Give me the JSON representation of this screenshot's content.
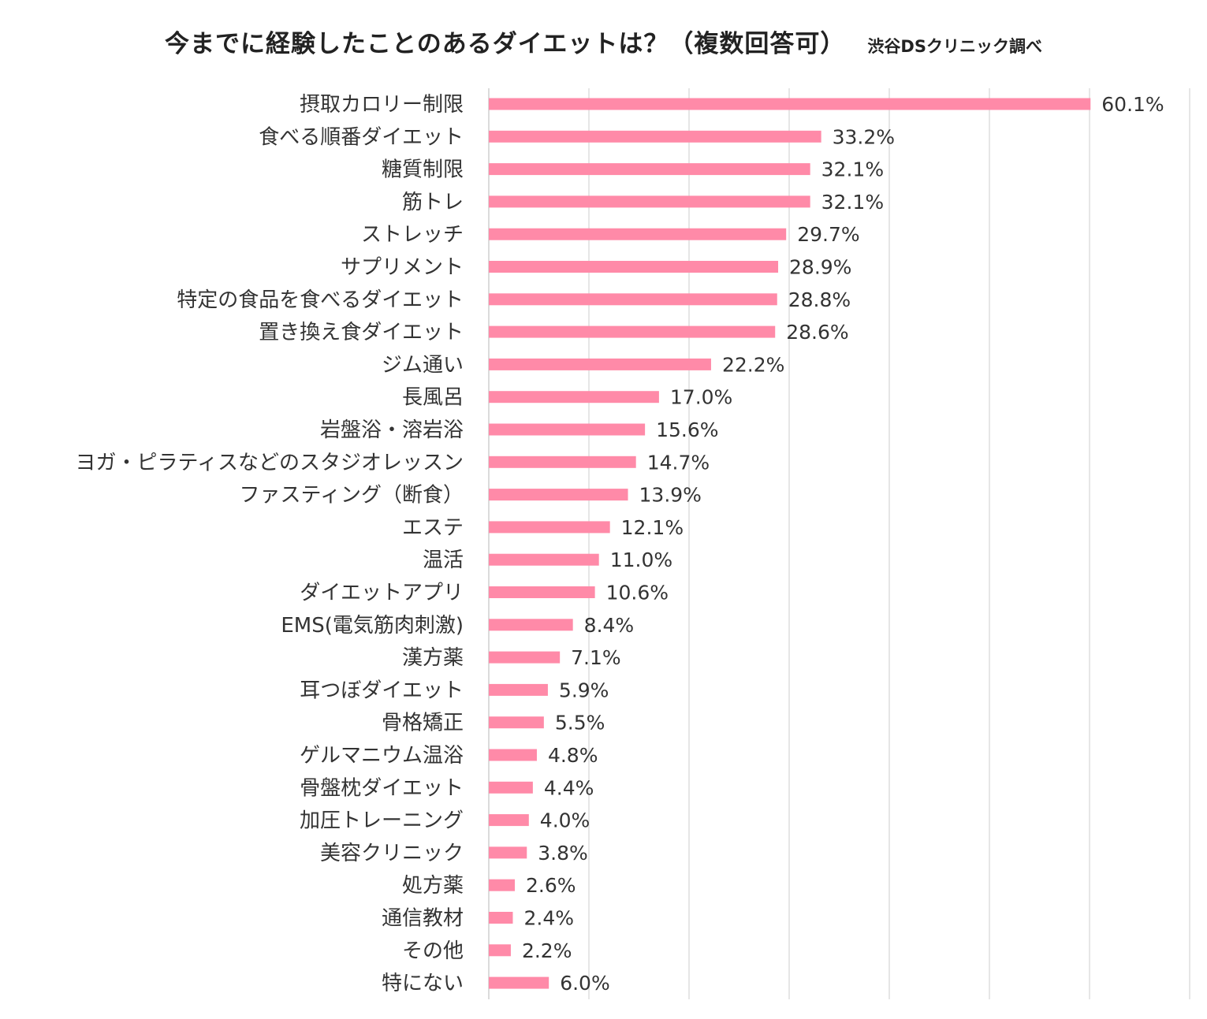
{
  "title": "今までに経験したことのあるダイエットは？（複数回答可）",
  "source": "渋谷DSクリニック調べ",
  "chart_data": {
    "type": "bar",
    "orientation": "horizontal",
    "bar_color": "#ff8aa8",
    "grid": "vertical",
    "xlim": [
      0,
      70
    ],
    "categories": [
      "摂取カロリー制限",
      "食べる順番ダイエット",
      "糖質制限",
      "筋トレ",
      "ストレッチ",
      "サプリメント",
      "特定の食品を食べるダイエット",
      "置き換え食ダイエット",
      "ジム通い",
      "長風呂",
      "岩盤浴・溶岩浴",
      "ヨガ・ピラティスなどのスタジオレッスン",
      "ファスティング（断食）",
      "エステ",
      "温活",
      "ダイエットアプリ",
      "EMS(電気筋肉刺激)",
      "漢方薬",
      "耳つぼダイエット",
      "骨格矯正",
      "ゲルマニウム温浴",
      "骨盤枕ダイエット",
      "加圧トレーニング",
      "美容クリニック",
      "処方薬",
      "通信教材",
      "その他",
      "特にない"
    ],
    "values": [
      60.1,
      33.2,
      32.1,
      32.1,
      29.7,
      28.9,
      28.8,
      28.6,
      22.2,
      17.0,
      15.6,
      14.7,
      13.9,
      12.1,
      11.0,
      10.6,
      8.4,
      7.1,
      5.9,
      5.5,
      4.8,
      4.4,
      4.0,
      3.8,
      2.6,
      2.4,
      2.2,
      6.0
    ],
    "labels": [
      "60.1%",
      "33.2%",
      "32.1%",
      "32.1%",
      "29.7%",
      "28.9%",
      "28.8%",
      "28.6%",
      "22.2%",
      "17.0%",
      "15.6%",
      "14.7%",
      "13.9%",
      "12.1%",
      "11.0%",
      "10.6%",
      "8.4%",
      "7.1%",
      "5.9%",
      "5.5%",
      "4.8%",
      "4.4%",
      "4.0%",
      "3.8%",
      "2.6%",
      "2.4%",
      "2.2%",
      "6.0%"
    ]
  }
}
